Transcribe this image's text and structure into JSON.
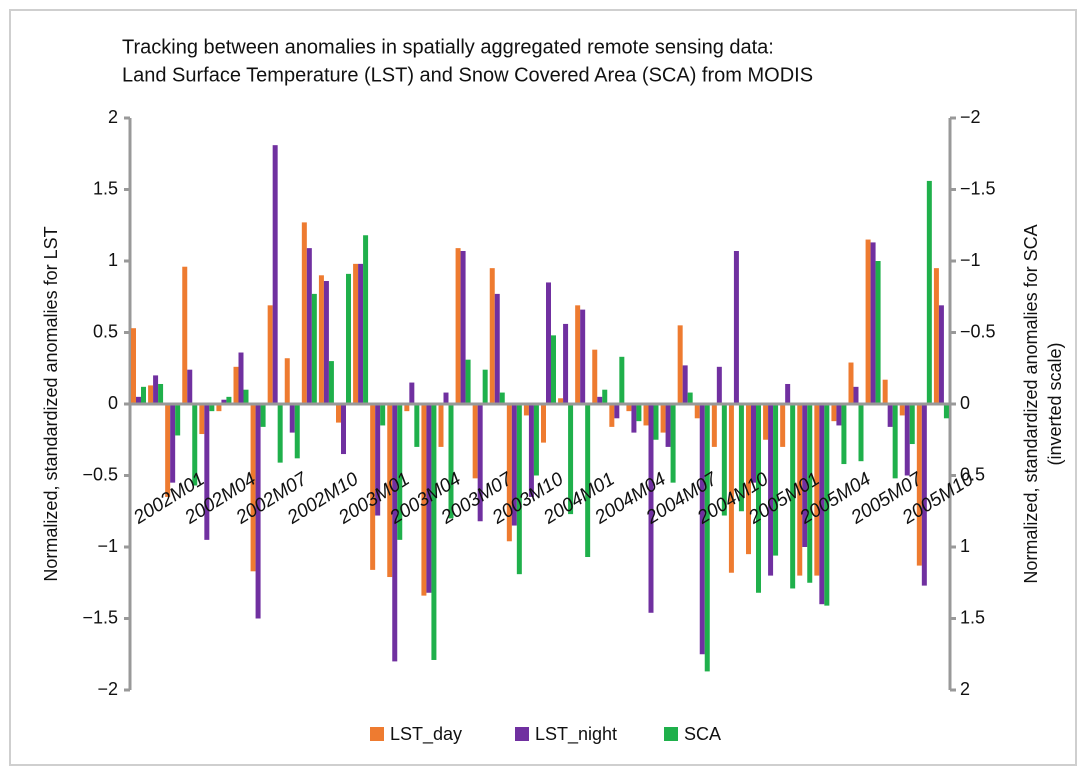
{
  "chart_data": {
    "type": "bar",
    "title": [
      "Tracking between anomalies in spatially aggregated remote sensing data:",
      "Land Surface Temperature (LST)  and  Snow Covered Area (SCA) from MODIS"
    ],
    "ylabel": "Normalized, standardized anomalies  for LST",
    "y2label": [
      "Normalized, standardized anomalies  for SCA",
      "(inverted scale)"
    ],
    "categories": [
      "2002M01",
      null,
      null,
      "2002M04",
      null,
      null,
      "2002M07",
      null,
      null,
      "2002M10",
      null,
      null,
      "2003M01",
      null,
      null,
      "2003M04",
      null,
      null,
      "2003M07",
      null,
      null,
      "2003M10",
      null,
      null,
      "2004M01",
      null,
      null,
      "2004M04",
      null,
      null,
      "2004M07",
      null,
      null,
      "2004M10",
      null,
      null,
      "2005M01",
      null,
      null,
      "2005M04",
      null,
      null,
      "2005M07",
      null,
      null,
      "2005M10",
      null,
      null
    ],
    "series": [
      {
        "name": "LST_day",
        "color": "#ee7b30",
        "values": [
          0.53,
          0.13,
          -0.65,
          0.96,
          -0.21,
          -0.05,
          0.26,
          -1.17,
          0.69,
          0.32,
          1.27,
          0.9,
          -0.13,
          0.98,
          -1.16,
          -1.21,
          -0.05,
          -1.34,
          -0.3,
          1.09,
          -0.52,
          0.95,
          -0.96,
          -0.08,
          -0.27,
          0.04,
          0.69,
          0.38,
          -0.16,
          -0.05,
          -0.15,
          -0.2,
          0.55,
          -0.1,
          -0.3,
          -1.18,
          -1.05,
          -0.25,
          -0.3,
          -1.2,
          -1.2,
          -0.12,
          0.29,
          1.15,
          0.17,
          -0.08,
          -1.13,
          0.95
        ]
      },
      {
        "name": "LST_night",
        "color": "#7030a0",
        "values": [
          0.05,
          0.2,
          -0.55,
          0.24,
          -0.95,
          0.03,
          0.36,
          -1.5,
          1.81,
          -0.2,
          1.09,
          0.86,
          -0.35,
          0.98,
          -0.78,
          -1.8,
          0.15,
          -1.32,
          0.08,
          1.07,
          -0.82,
          0.77,
          -0.85,
          -0.65,
          0.85,
          0.56,
          0.66,
          0.05,
          -0.1,
          -0.2,
          -1.46,
          -0.3,
          0.27,
          -1.75,
          0.26,
          1.07,
          -0.55,
          -1.2,
          0.14,
          -1.0,
          -1.4,
          -0.15,
          0.12,
          1.13,
          -0.16,
          -0.5,
          -1.27,
          0.69
        ]
      },
      {
        "name": "SCA",
        "color": "#1fb04b",
        "axis": "y2",
        "values": [
          -0.12,
          -0.14,
          0.22,
          0.57,
          0.05,
          -0.05,
          -0.1,
          0.16,
          0.41,
          0.38,
          -0.77,
          -0.3,
          -0.91,
          -1.18,
          0.15,
          0.95,
          0.3,
          1.79,
          0.8,
          -0.31,
          -0.24,
          -0.08,
          1.19,
          0.5,
          -0.48,
          0.77,
          1.07,
          -0.1,
          -0.33,
          0.12,
          0.25,
          0.55,
          -0.08,
          1.87,
          0.78,
          0.75,
          1.32,
          1.06,
          1.29,
          1.25,
          1.41,
          0.42,
          0.4,
          -1.0,
          0.52,
          0.28,
          -1.56,
          0.1
        ]
      }
    ],
    "ylim": [
      -2,
      2
    ],
    "yticks": [
      {
        "value": -2,
        "label": "−2"
      },
      {
        "value": -1.5,
        "label": "−1.5"
      },
      {
        "value": -1,
        "label": "−1"
      },
      {
        "value": -0.5,
        "label": "−0.5"
      },
      0,
      0.5,
      1,
      1.5,
      2
    ],
    "y2lim": [
      2,
      -2
    ],
    "y2ticks": [
      {
        "value": -2,
        "label": "−2"
      },
      {
        "value": -1.5,
        "label": "−1.5"
      },
      {
        "value": -1,
        "label": "−1"
      },
      {
        "value": -0.5,
        "label": "−0.5"
      },
      0,
      0.5,
      1,
      1.5,
      2
    ],
    "legend": "bottom"
  }
}
